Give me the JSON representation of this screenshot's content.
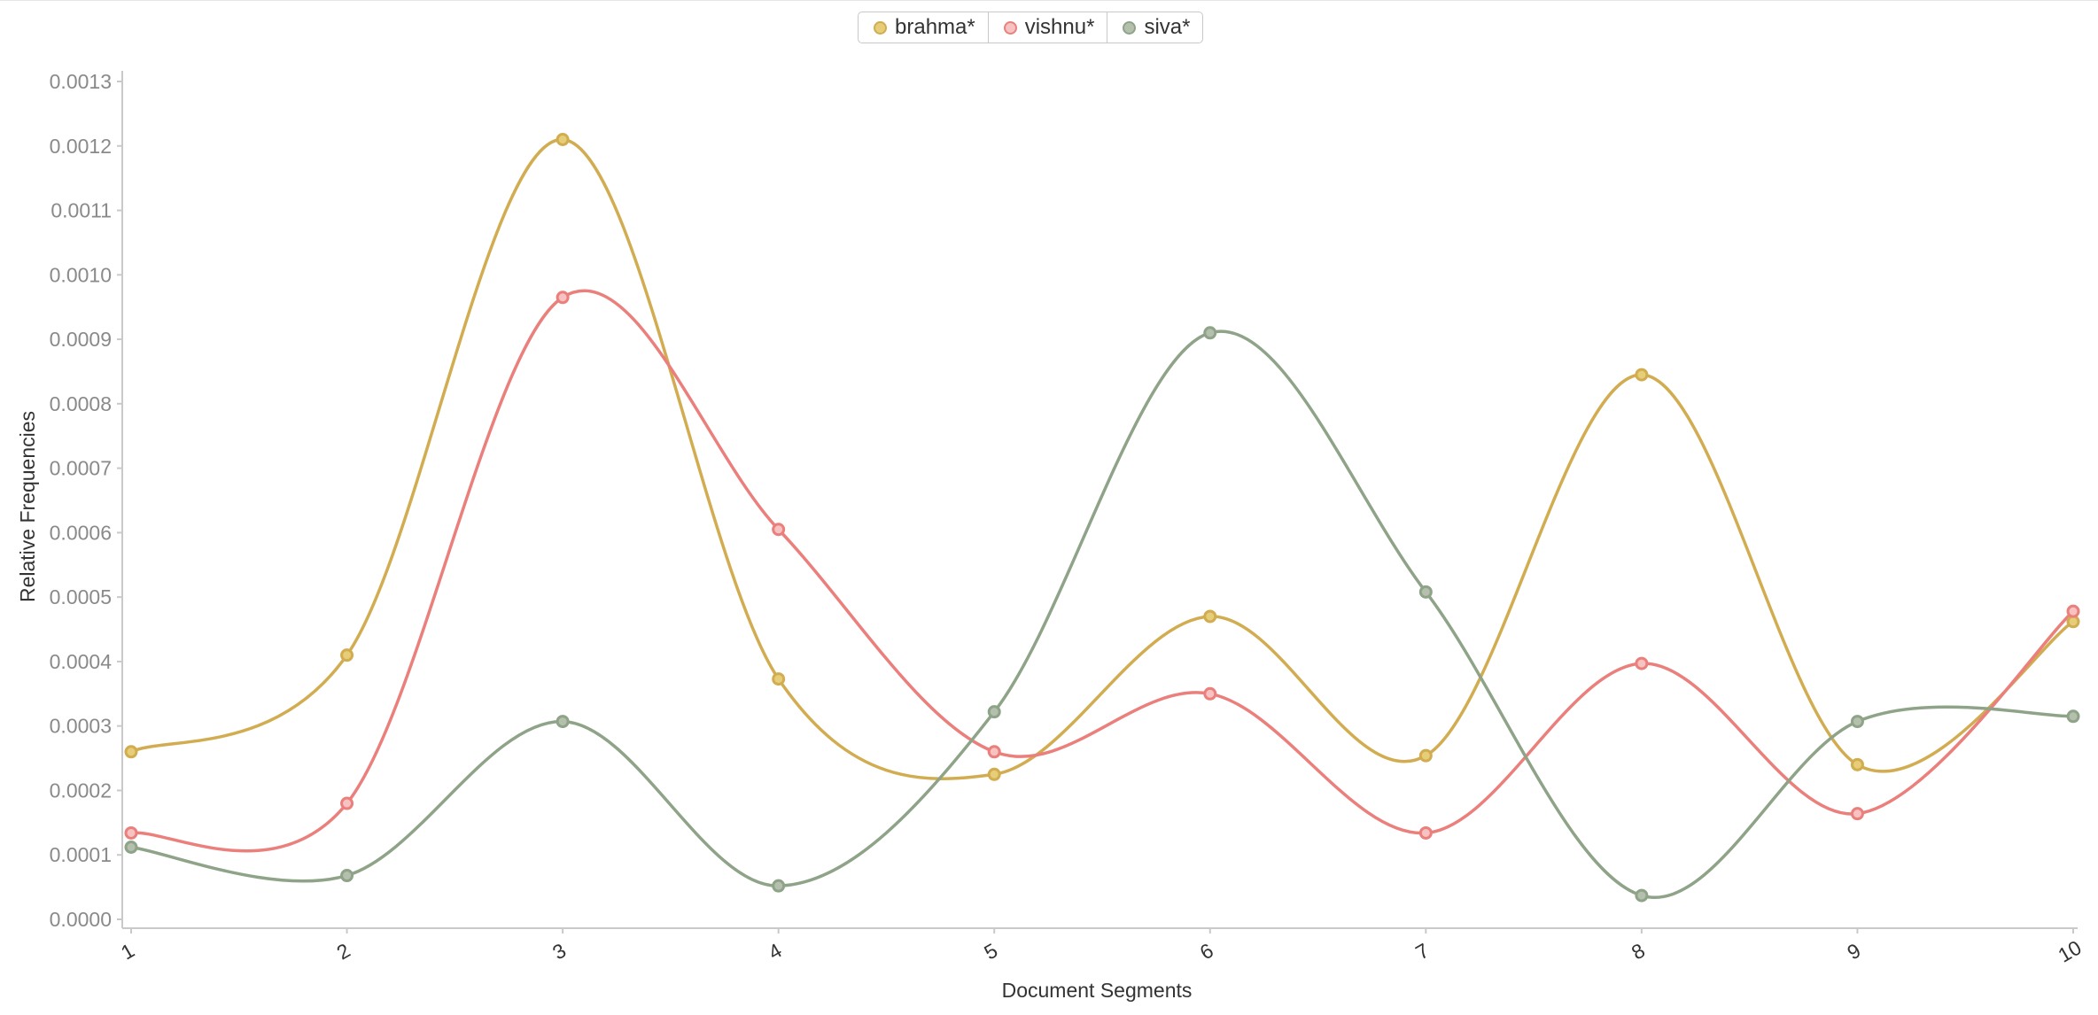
{
  "chart_data": {
    "type": "line",
    "title": "",
    "xlabel": "Document Segments",
    "ylabel": "Relative Frequencies",
    "categories": [
      "1",
      "2",
      "3",
      "4",
      "5",
      "6",
      "7",
      "8",
      "9",
      "10"
    ],
    "ylim": [
      0,
      0.0013
    ],
    "yticks": [
      "0.0000",
      "0.0001",
      "0.0002",
      "0.0003",
      "0.0004",
      "0.0005",
      "0.0006",
      "0.0007",
      "0.0008",
      "0.0009",
      "0.0010",
      "0.0011",
      "0.0012",
      "0.0013"
    ],
    "grid": false,
    "legend_position": "top-center",
    "series": [
      {
        "name": "brahma*",
        "color": "#d2ac50",
        "values": [
          0.00026,
          0.00041,
          0.00121,
          0.000373,
          0.000225,
          0.00047,
          0.000254,
          0.000845,
          0.00024,
          0.000462
        ]
      },
      {
        "name": "vishnu*",
        "color": "#ea7f7c",
        "values": [
          0.000134,
          0.00018,
          0.000965,
          0.000605,
          0.00026,
          0.00035,
          0.000134,
          0.000397,
          0.000164,
          0.000478
        ]
      },
      {
        "name": "siva*",
        "color": "#8ea387",
        "values": [
          0.000112,
          6.8e-05,
          0.000307,
          5.2e-05,
          0.000322,
          0.00091,
          0.000508,
          3.7e-05,
          0.000307,
          0.000315
        ]
      }
    ]
  },
  "legend_swatch_fills": [
    "#e6cd78",
    "#f6c2c2",
    "#b4c0ad"
  ]
}
